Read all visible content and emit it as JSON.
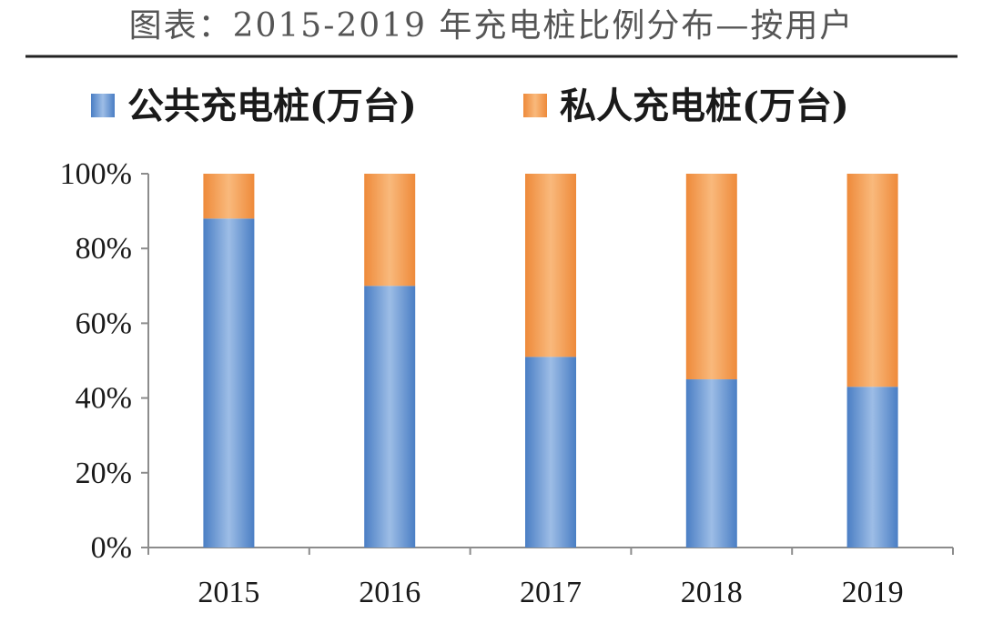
{
  "header": {
    "title": "图表：2015-2019 年充电桩比例分布—按用户"
  },
  "colors": {
    "public": "#4A7EC4",
    "public_light": "#9DBDE6",
    "private": "#EE8A3A",
    "private_light": "#F9B97C",
    "axis": "#8C8C8C",
    "rule": "#222222"
  },
  "chart_data": {
    "type": "bar",
    "stacked": true,
    "percent": true,
    "categories": [
      "2015",
      "2016",
      "2017",
      "2018",
      "2019"
    ],
    "series": [
      {
        "name": "公共充电桩(万台)",
        "values": [
          88,
          70,
          51,
          45,
          43
        ]
      },
      {
        "name": "私人充电桩(万台)",
        "values": [
          12,
          30,
          49,
          55,
          57
        ]
      }
    ],
    "ylim": [
      0,
      100
    ],
    "yticks": [
      "0%",
      "20%",
      "40%",
      "60%",
      "80%",
      "100%"
    ],
    "grid": false,
    "legend": "top",
    "xlabel": "",
    "ylabel": ""
  }
}
